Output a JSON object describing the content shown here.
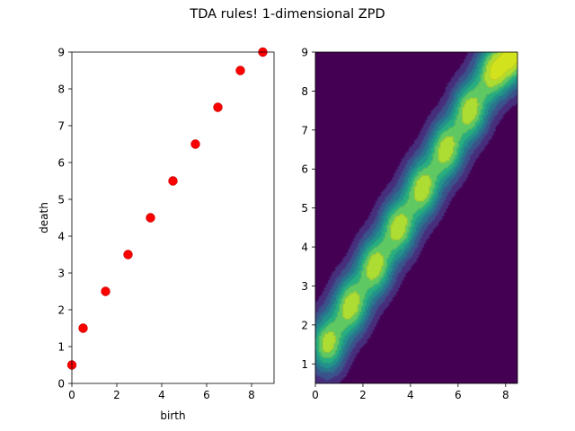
{
  "figure": {
    "title": "TDA rules! 1-dimensional ZPD"
  },
  "chart_data": [
    {
      "type": "scatter",
      "xlabel": "birth",
      "ylabel": "death",
      "xlim": [
        0,
        9
      ],
      "ylim": [
        0,
        9
      ],
      "xticks": [
        0,
        2,
        4,
        6,
        8
      ],
      "yticks": [
        0,
        1,
        2,
        3,
        4,
        5,
        6,
        7,
        8,
        9
      ],
      "grid": false,
      "marker_color": "#ff0000",
      "points": [
        {
          "x": 0.0,
          "y": 0.5
        },
        {
          "x": 0.5,
          "y": 1.5
        },
        {
          "x": 1.5,
          "y": 2.5
        },
        {
          "x": 2.5,
          "y": 3.5
        },
        {
          "x": 3.5,
          "y": 4.5
        },
        {
          "x": 4.5,
          "y": 5.5
        },
        {
          "x": 5.5,
          "y": 6.5
        },
        {
          "x": 6.5,
          "y": 7.5
        },
        {
          "x": 7.5,
          "y": 8.5
        },
        {
          "x": 8.5,
          "y": 9.0
        }
      ]
    },
    {
      "type": "heatmap",
      "style": "filled-contour",
      "colormap": "viridis",
      "xlim": [
        0,
        8.5
      ],
      "ylim": [
        0.5,
        9
      ],
      "xticks": [
        0,
        2,
        4,
        6,
        8
      ],
      "yticks": [
        1,
        2,
        3,
        4,
        5,
        6,
        7,
        8,
        9
      ],
      "grid": false,
      "levels": [
        "#440154",
        "#472d7b",
        "#3b528b",
        "#2c728e",
        "#21918c",
        "#28ae80",
        "#5ec962",
        "#addc30",
        "#d2e21b"
      ],
      "peaks": [
        {
          "x": 0.6,
          "y": 1.4,
          "level": 8
        },
        {
          "x": 2.6,
          "y": 3.4,
          "level": 8
        },
        {
          "x": 4.6,
          "y": 5.4,
          "level": 8
        },
        {
          "x": 7.0,
          "y": 7.9,
          "level": 8
        }
      ]
    }
  ]
}
